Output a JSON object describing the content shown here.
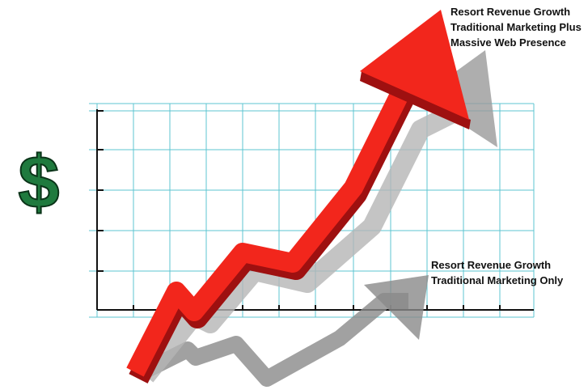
{
  "symbol": "$",
  "annotations": [
    {
      "lines": [
        "Resort Revenue Growth",
        "Traditional Marketing Plus",
        "Massive Web Presence"
      ]
    },
    {
      "lines": [
        "Resort Revenue Growth",
        "Traditional Marketing Only"
      ]
    }
  ]
}
